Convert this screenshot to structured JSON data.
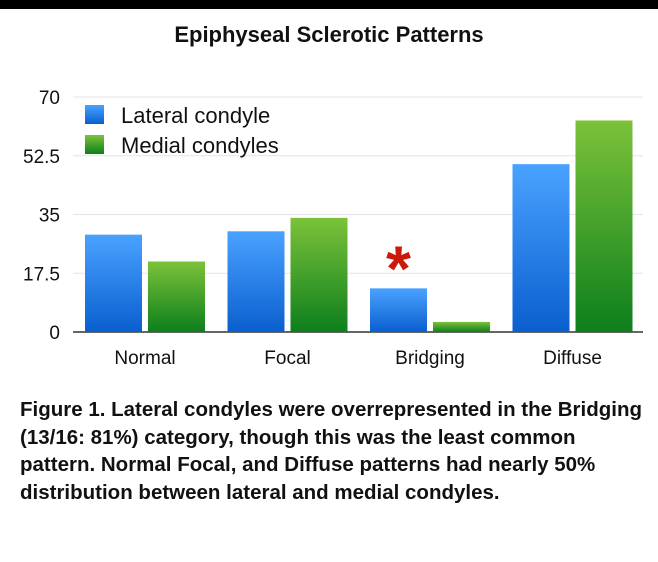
{
  "chart_data": {
    "type": "bar",
    "title": "Epiphyseal Sclerotic Patterns",
    "categories": [
      "Normal",
      "Focal",
      "Bridging",
      "Diffuse"
    ],
    "series": [
      {
        "name": "Lateral condyle",
        "values": [
          29,
          30,
          13,
          50
        ],
        "color": "#2f86e8"
      },
      {
        "name": "Medial condyles",
        "values": [
          21,
          34,
          3,
          63
        ],
        "color": "#3aa630"
      }
    ],
    "ylim": [
      0,
      70
    ],
    "yticks": [
      "0",
      "17.5",
      "35",
      "52.5",
      "70"
    ],
    "grid": true,
    "legend": "top-left",
    "annotations": [
      {
        "text": "*",
        "category": "Bridging",
        "color": "#cc1a0a"
      }
    ],
    "xlabel": "",
    "ylabel": ""
  },
  "caption": "Figure 1. Lateral condyles were overrepresented in the Bridging (13/16: 81%) category, though this was the least common pattern.  Normal Focal, and Diffuse patterns had nearly 50% distribution between lateral and medial condyles."
}
